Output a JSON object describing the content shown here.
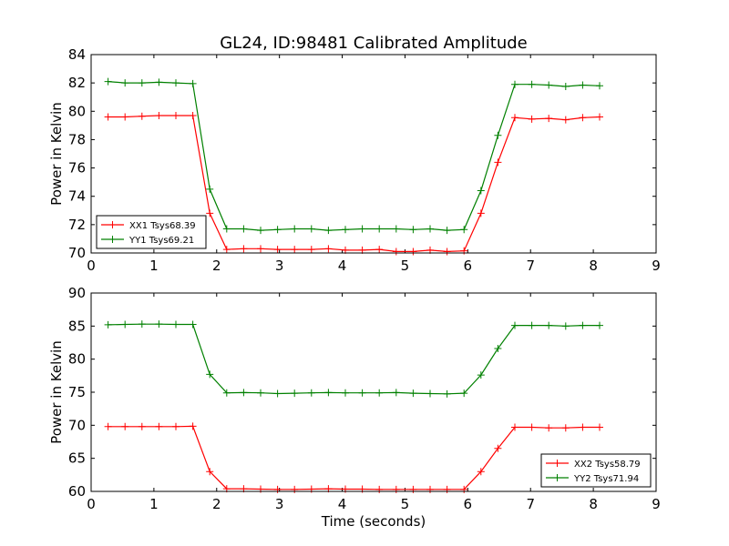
{
  "figure": {
    "title": "GL24, ID:98481 Calibrated Amplitude"
  },
  "chart_data": [
    {
      "type": "line",
      "title": "GL24, ID:98481 Calibrated Amplitude",
      "xlabel": "",
      "ylabel": "Power in Kelvin",
      "xlim": [
        0,
        9
      ],
      "ylim": [
        70,
        84
      ],
      "xticks": [
        0,
        1,
        2,
        3,
        4,
        5,
        6,
        7,
        8,
        9
      ],
      "yticks": [
        70,
        72,
        74,
        76,
        78,
        80,
        82,
        84
      ],
      "legend_position": "lower-left",
      "grid": false,
      "series": [
        {
          "name": "XX1 Tsys68.39",
          "color": "#ff0000",
          "x": [
            0.27,
            0.54,
            0.81,
            1.08,
            1.35,
            1.62,
            1.89,
            2.16,
            2.43,
            2.7,
            2.97,
            3.24,
            3.51,
            3.78,
            4.05,
            4.32,
            4.59,
            4.86,
            5.13,
            5.4,
            5.67,
            5.94,
            6.21,
            6.48,
            6.75,
            7.02,
            7.29,
            7.56,
            7.83,
            8.1
          ],
          "y": [
            79.6,
            79.6,
            79.65,
            79.7,
            79.7,
            79.7,
            72.8,
            70.25,
            70.3,
            70.3,
            70.25,
            70.25,
            70.25,
            70.3,
            70.2,
            70.2,
            70.25,
            70.1,
            70.1,
            70.2,
            70.1,
            70.15,
            72.8,
            76.4,
            79.55,
            79.45,
            79.5,
            79.4,
            79.55,
            79.6
          ]
        },
        {
          "name": "YY1 Tsys69.21",
          "color": "#008000",
          "x": [
            0.27,
            0.54,
            0.81,
            1.08,
            1.35,
            1.62,
            1.89,
            2.16,
            2.43,
            2.7,
            2.97,
            3.24,
            3.51,
            3.78,
            4.05,
            4.32,
            4.59,
            4.86,
            5.13,
            5.4,
            5.67,
            5.94,
            6.21,
            6.48,
            6.75,
            7.02,
            7.29,
            7.56,
            7.83,
            8.1
          ],
          "y": [
            82.1,
            82.0,
            82.0,
            82.05,
            82.0,
            81.95,
            74.5,
            71.7,
            71.7,
            71.6,
            71.65,
            71.7,
            71.7,
            71.6,
            71.65,
            71.7,
            71.7,
            71.7,
            71.65,
            71.7,
            71.6,
            71.65,
            74.4,
            78.3,
            81.9,
            81.9,
            81.85,
            81.75,
            81.85,
            81.8
          ]
        }
      ]
    },
    {
      "type": "line",
      "title": "",
      "xlabel": "Time (seconds)",
      "ylabel": "Power in Kelvin",
      "xlim": [
        0,
        9
      ],
      "ylim": [
        60,
        90
      ],
      "xticks": [
        0,
        1,
        2,
        3,
        4,
        5,
        6,
        7,
        8,
        9
      ],
      "yticks": [
        60,
        65,
        70,
        75,
        80,
        85,
        90
      ],
      "legend_position": "lower-right",
      "grid": false,
      "series": [
        {
          "name": "XX2 Tsys58.79",
          "color": "#ff0000",
          "x": [
            0.27,
            0.54,
            0.81,
            1.08,
            1.35,
            1.62,
            1.89,
            2.16,
            2.43,
            2.7,
            2.97,
            3.24,
            3.51,
            3.78,
            4.05,
            4.32,
            4.59,
            4.86,
            5.13,
            5.4,
            5.67,
            5.94,
            6.21,
            6.48,
            6.75,
            7.02,
            7.29,
            7.56,
            7.83,
            8.1
          ],
          "y": [
            69.8,
            69.8,
            69.8,
            69.8,
            69.8,
            69.85,
            63.0,
            60.4,
            60.4,
            60.35,
            60.3,
            60.3,
            60.35,
            60.4,
            60.35,
            60.35,
            60.3,
            60.3,
            60.3,
            60.3,
            60.3,
            60.3,
            63.0,
            66.5,
            69.7,
            69.7,
            69.6,
            69.6,
            69.7,
            69.7
          ]
        },
        {
          "name": "YY2 Tsys71.94",
          "color": "#008000",
          "x": [
            0.27,
            0.54,
            0.81,
            1.08,
            1.35,
            1.62,
            1.89,
            2.16,
            2.43,
            2.7,
            2.97,
            3.24,
            3.51,
            3.78,
            4.05,
            4.32,
            4.59,
            4.86,
            5.13,
            5.4,
            5.67,
            5.94,
            6.21,
            6.48,
            6.75,
            7.02,
            7.29,
            7.56,
            7.83,
            8.1
          ],
          "y": [
            85.2,
            85.25,
            85.3,
            85.3,
            85.25,
            85.25,
            77.7,
            74.9,
            74.95,
            74.9,
            74.8,
            74.85,
            74.9,
            74.95,
            74.9,
            74.9,
            74.9,
            74.95,
            74.85,
            74.8,
            74.75,
            74.85,
            77.6,
            81.6,
            85.1,
            85.1,
            85.1,
            85.0,
            85.1,
            85.1
          ]
        }
      ]
    }
  ]
}
